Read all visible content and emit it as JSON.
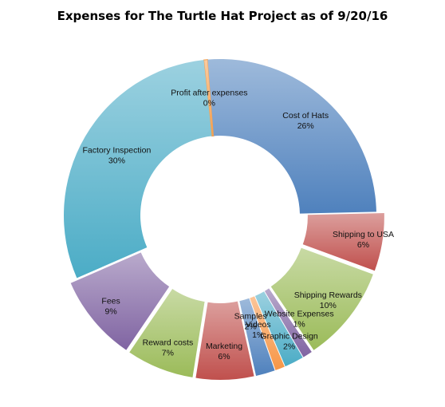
{
  "chart_data": {
    "type": "pie",
    "title": "Expenses for The Turtle Hat Project as of 9/20/16",
    "start_angle_deg": -6,
    "slices": [
      {
        "label": "Profit after expenses",
        "percent_label": "0%",
        "value": 0.4,
        "color": "#F5A050"
      },
      {
        "label": "Cost of Hats",
        "percent_label": "26%",
        "value": 26,
        "color": "#4F81BD"
      },
      {
        "label": "Shipping  to USA",
        "percent_label": "6%",
        "value": 6,
        "color": "#C0504D"
      },
      {
        "label": "Shipping Rewards",
        "percent_label": "10%",
        "value": 10,
        "color": "#9BBB59"
      },
      {
        "label": "Website Expenses",
        "percent_label": "1%",
        "value": 1,
        "color": "#8064A2"
      },
      {
        "label": "Graphic Design",
        "percent_label": "2%",
        "value": 2,
        "color": "#4BACC6"
      },
      {
        "label": "Videos",
        "percent_label": "1%",
        "value": 1,
        "color": "#F79646"
      },
      {
        "label": "Samples",
        "percent_label": "2%",
        "value": 2,
        "color": "#4F81BD"
      },
      {
        "label": "Marketing",
        "percent_label": "6%",
        "value": 6,
        "color": "#C0504D"
      },
      {
        "label": "Reward costs",
        "percent_label": "7%",
        "value": 7,
        "color": "#9BBB59"
      },
      {
        "label": "Fees",
        "percent_label": "9%",
        "value": 9,
        "color": "#8064A2"
      },
      {
        "label": "Factory Inspection",
        "percent_label": "30%",
        "value": 30,
        "color": "#4BACC6"
      }
    ]
  }
}
